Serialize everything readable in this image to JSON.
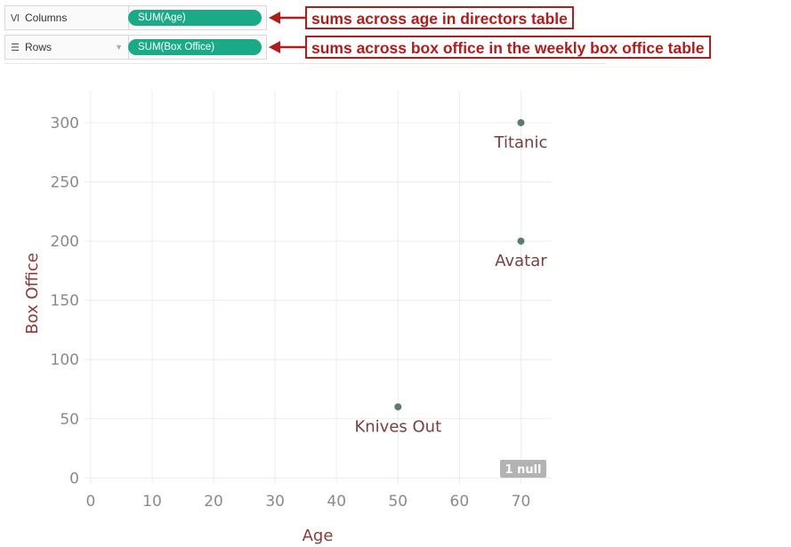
{
  "shelves": {
    "columns": {
      "icon": "columns-icon",
      "label": "Columns",
      "pill": "SUM(Age)"
    },
    "rows": {
      "icon": "rows-icon",
      "label": "Rows",
      "pill": "SUM(Box Office)"
    }
  },
  "annotations": {
    "columns_note": "sums across age in directors table",
    "rows_note": "sums across box office in the weekly box office table"
  },
  "colors": {
    "pill": "#1aaa86",
    "annotation": "#b11c1c",
    "point": "#5a7a72",
    "label": "#7a3e3e",
    "null_badge": "#b3b3b3"
  },
  "chart_data": {
    "type": "scatter",
    "xlabel": "Age",
    "ylabel": "Box Office",
    "xlim": [
      -1,
      75
    ],
    "ylim": [
      -5,
      318
    ],
    "x_ticks": [
      0,
      10,
      20,
      30,
      40,
      50,
      60,
      70
    ],
    "y_ticks": [
      0,
      50,
      100,
      150,
      200,
      250,
      300
    ],
    "grid": true,
    "points": [
      {
        "label": "Titanic",
        "x": 70,
        "y": 300
      },
      {
        "label": "Avatar",
        "x": 70,
        "y": 200
      },
      {
        "label": "Knives Out",
        "x": 50,
        "y": 60
      }
    ],
    "null_indicator": "1 null"
  }
}
